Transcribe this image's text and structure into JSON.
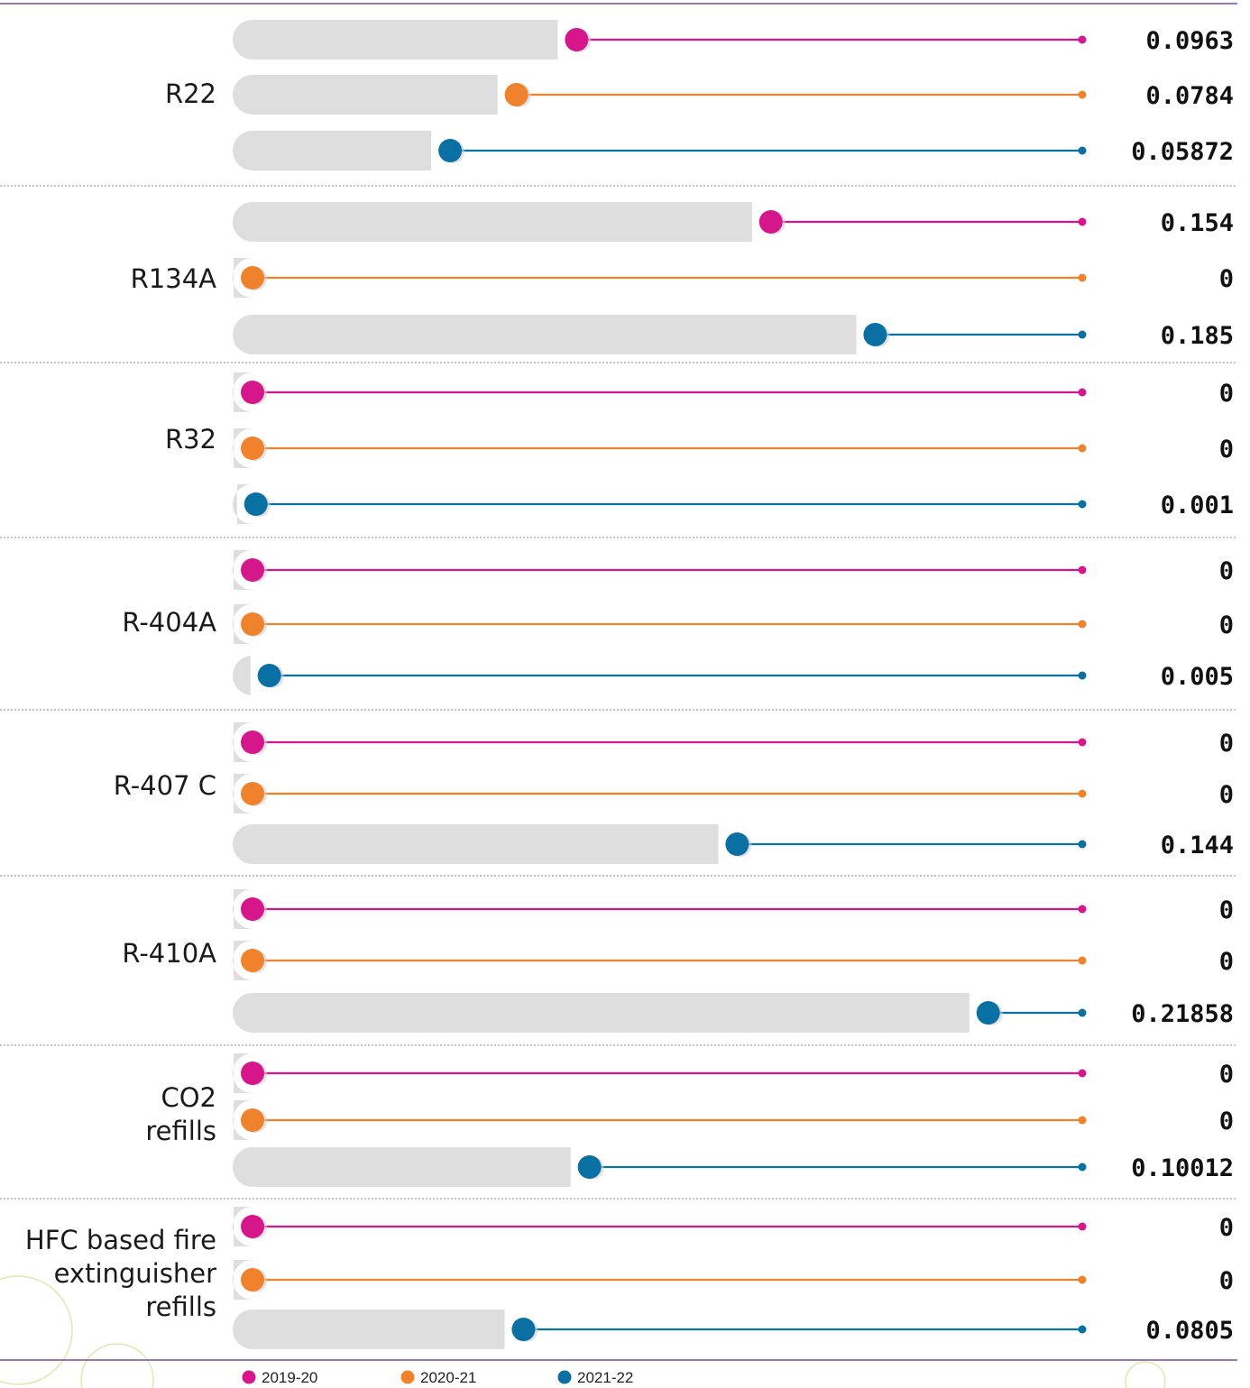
{
  "chart_data": {
    "type": "bar",
    "title": "",
    "xlabel": "",
    "ylabel": "",
    "xlim": [
      0,
      0.235
    ],
    "categories": [
      [
        "R22"
      ],
      [
        "R134A"
      ],
      [
        "R32"
      ],
      [
        "R-404A"
      ],
      [
        "R-407 C"
      ],
      [
        "R-410A"
      ],
      [
        "CO2",
        "refills"
      ],
      [
        "HFC based fire",
        "extinguisher",
        "refills"
      ]
    ],
    "series": [
      {
        "name": "2019-20",
        "color": "#d6168b"
      },
      {
        "name": "2020-21",
        "color": "#f0822d"
      },
      {
        "name": "2021-22",
        "color": "#0a6fa3"
      }
    ],
    "values": [
      [
        0.0963,
        0.0784,
        0.05872
      ],
      [
        0.154,
        0,
        0.185
      ],
      [
        0,
        0,
        0.001
      ],
      [
        0,
        0,
        0.005
      ],
      [
        0,
        0,
        0.144
      ],
      [
        0,
        0,
        0.21858
      ],
      [
        0,
        0,
        0.10012
      ],
      [
        0,
        0,
        0.0805
      ]
    ],
    "value_labels": [
      [
        "0.0963",
        "0.0784",
        "0.05872"
      ],
      [
        "0.154",
        "0",
        "0.185"
      ],
      [
        "0",
        "0",
        "0.001"
      ],
      [
        "0",
        "0",
        "0.005"
      ],
      [
        "0",
        "0",
        "0.144"
      ],
      [
        "0",
        "0",
        "0.21858"
      ],
      [
        "0",
        "0",
        "0.10012"
      ],
      [
        "0",
        "0",
        "0.0805"
      ]
    ],
    "legend": "bottom",
    "grid": false,
    "bar_color": "#dedede",
    "divider_color": "#7b4a9c"
  }
}
